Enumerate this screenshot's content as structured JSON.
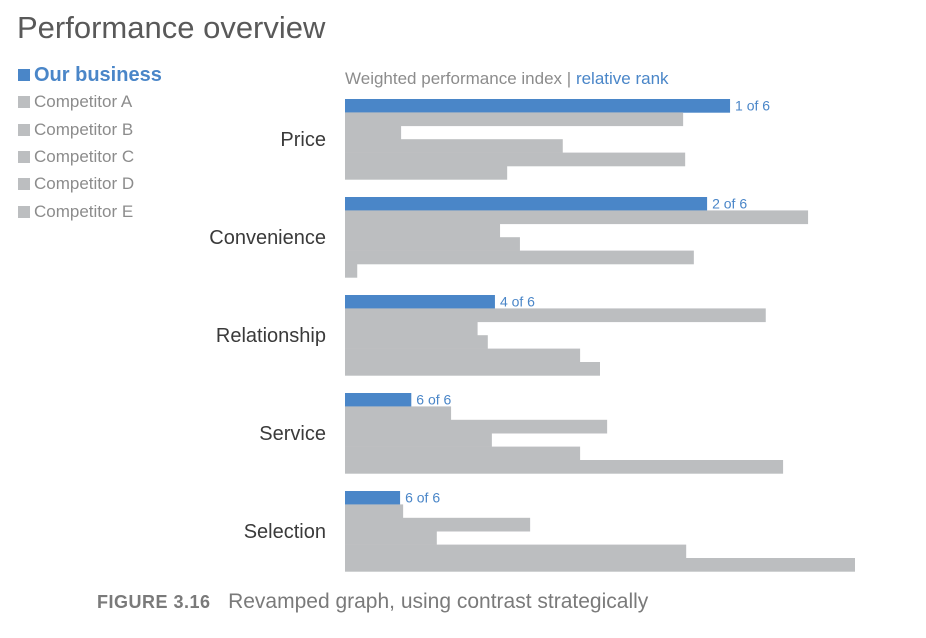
{
  "title": "Performance overview",
  "caption": {
    "figure_label": "FIGURE 3.16",
    "text": "Revamped graph, using contrast strategically"
  },
  "colors": {
    "highlight": "#4a86c8",
    "competitor": "#bcbec0",
    "title": "#595959",
    "category_label": "#3a3a3a",
    "rank_label": "#4a86c8"
  },
  "chart_data": {
    "type": "bar",
    "orientation": "horizontal",
    "subtitle_prefix": "Weighted performance index",
    "subtitle_separator": "|",
    "subtitle_highlight": "relative rank",
    "categories": [
      "Price",
      "Convenience",
      "Relationship",
      "Service",
      "Selection"
    ],
    "xlim": [
      0,
      100
    ],
    "grid": false,
    "axis_ticks": false,
    "legend_position": "top-left",
    "series": [
      {
        "name": "Our business",
        "highlight": true,
        "values": [
          75.5,
          71,
          29.4,
          13,
          10.8
        ]
      },
      {
        "name": "Competitor A",
        "values": [
          66.3,
          90.8,
          82.5,
          20.8,
          11.4
        ]
      },
      {
        "name": "Competitor B",
        "values": [
          11,
          30.4,
          26,
          51.4,
          36.3
        ]
      },
      {
        "name": "Competitor C",
        "values": [
          42.7,
          34.3,
          28,
          28.8,
          18
        ]
      },
      {
        "name": "Competitor D",
        "values": [
          66.7,
          68.4,
          46.1,
          46.1,
          66.9
        ]
      },
      {
        "name": "Competitor E",
        "values": [
          31.8,
          2.4,
          50,
          85.9,
          100
        ]
      }
    ],
    "rank_labels": [
      "1 of 6",
      "2 of 6",
      "4 of 6",
      "6 of 6",
      "6 of 6"
    ]
  }
}
